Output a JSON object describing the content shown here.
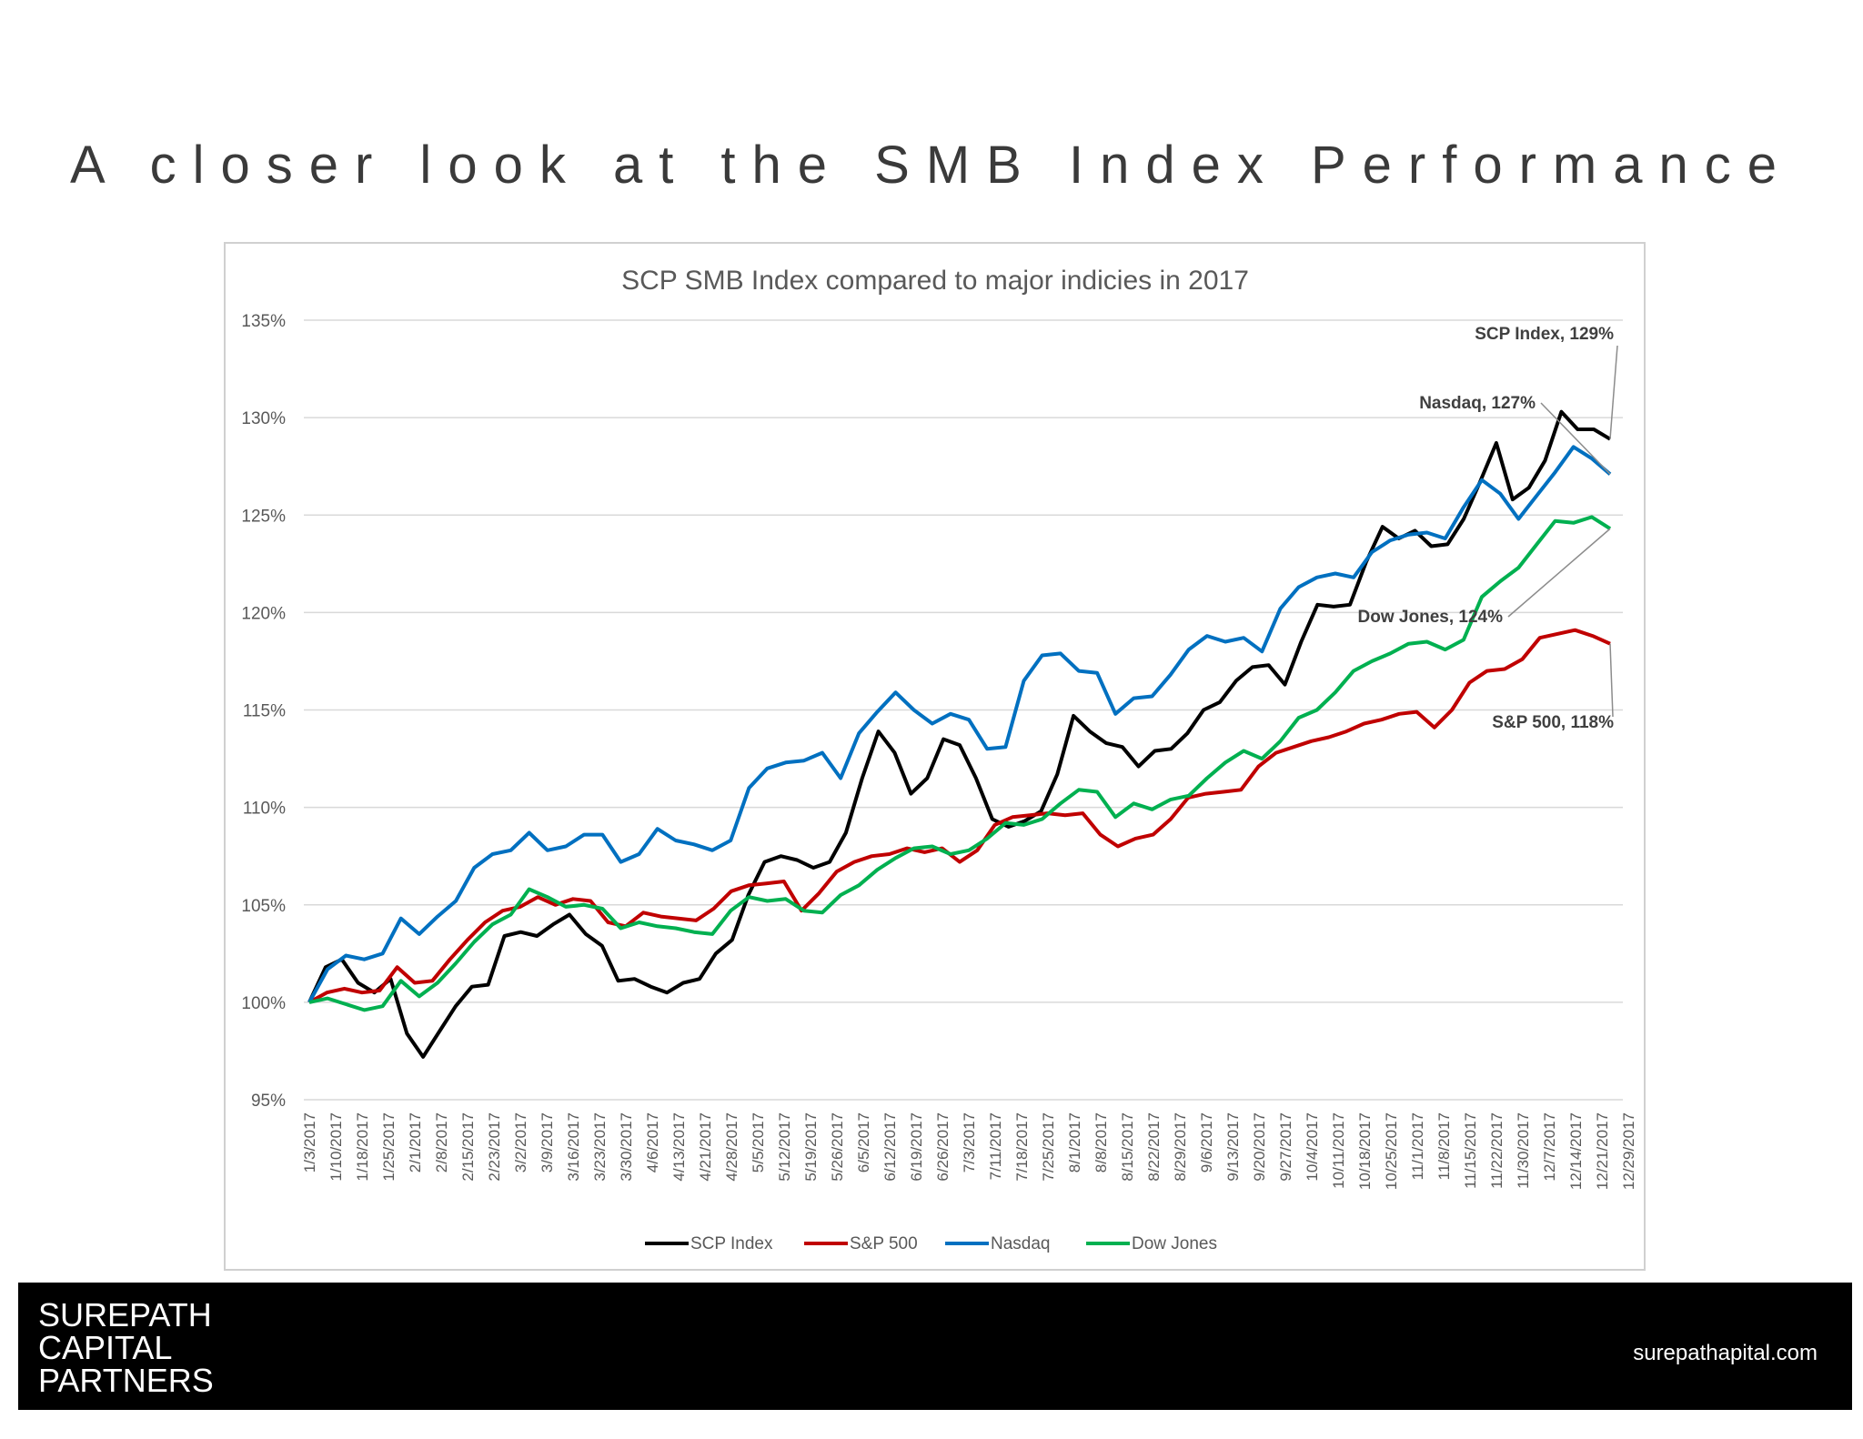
{
  "slide": {
    "title": "A closer look at the SMB Index Performance"
  },
  "footer": {
    "brand_lines": [
      "SUREPATH",
      "CAPITAL",
      "PARTNERS"
    ],
    "website": "surepathapital.com"
  },
  "chart_data": {
    "type": "line",
    "title": "SCP SMB Index compared to major indicies in 2017",
    "xlabel": "",
    "ylabel": "",
    "ylim": [
      95,
      135
    ],
    "y_ticks": [
      "95%",
      "100%",
      "105%",
      "110%",
      "115%",
      "120%",
      "125%",
      "130%",
      "135%"
    ],
    "grid": "horizontal",
    "legend_position": "bottom",
    "x_tick_labels": [
      "1/3/2017",
      "1/10/2017",
      "1/18/2017",
      "1/25/2017",
      "2/1/2017",
      "2/8/2017",
      "2/15/2017",
      "2/23/2017",
      "3/2/2017",
      "3/9/2017",
      "3/16/2017",
      "3/23/2017",
      "3/30/2017",
      "4/6/2017",
      "4/13/2017",
      "4/21/2017",
      "4/28/2017",
      "5/5/2017",
      "5/12/2017",
      "5/19/2017",
      "5/26/2017",
      "6/5/2017",
      "6/12/2017",
      "6/19/2017",
      "6/26/2017",
      "7/3/2017",
      "7/11/2017",
      "7/18/2017",
      "7/25/2017",
      "8/1/2017",
      "8/8/2017",
      "8/15/2017",
      "8/22/2017",
      "8/29/2017",
      "9/6/2017",
      "9/13/2017",
      "9/20/2017",
      "9/27/2017",
      "10/4/2017",
      "10/11/2017",
      "10/18/2017",
      "10/25/2017",
      "11/1/2017",
      "11/8/2017",
      "11/15/2017",
      "11/22/2017",
      "11/30/2017",
      "12/7/2017",
      "12/14/2017",
      "12/21/2017",
      "12/29/2017"
    ],
    "series": [
      {
        "name": "SCP Index",
        "color": "#000000",
        "end_label": "SCP Index, 129%",
        "values": [
          100.0,
          101.8,
          102.2,
          101.0,
          100.5,
          101.2,
          98.4,
          97.2,
          98.5,
          99.8,
          100.8,
          100.9,
          103.4,
          103.6,
          103.4,
          104.0,
          104.5,
          103.5,
          102.9,
          101.1,
          101.2,
          100.8,
          100.5,
          101.0,
          101.2,
          102.5,
          103.2,
          105.5,
          107.2,
          107.5,
          107.3,
          106.9,
          107.2,
          108.7,
          111.5,
          113.9,
          112.8,
          110.7,
          111.5,
          113.5,
          113.2,
          111.5,
          109.4,
          109.0,
          109.3,
          109.8,
          111.7,
          114.7,
          113.9,
          113.3,
          113.1,
          112.1,
          112.9,
          113.0,
          113.8,
          115.0,
          115.4,
          116.5,
          117.2,
          117.3,
          116.3,
          118.5,
          120.4,
          120.3,
          120.4,
          122.6,
          124.4,
          123.8,
          124.2,
          123.4,
          123.5,
          124.8,
          126.7,
          128.7,
          125.8,
          126.4,
          127.8,
          130.3,
          129.4,
          129.4,
          128.9
        ]
      },
      {
        "name": "S&P 500",
        "color": "#c00000",
        "end_label": "S&P 500, 118%",
        "values": [
          100.0,
          100.5,
          100.7,
          100.5,
          100.6,
          101.8,
          101.0,
          101.1,
          102.2,
          103.2,
          104.1,
          104.7,
          104.9,
          105.4,
          105.0,
          105.3,
          105.2,
          104.1,
          103.9,
          104.6,
          104.4,
          104.3,
          104.2,
          104.8,
          105.7,
          106.0,
          106.1,
          106.2,
          104.7,
          105.6,
          106.7,
          107.2,
          107.5,
          107.6,
          107.9,
          107.7,
          107.9,
          107.2,
          107.8,
          109.1,
          109.5,
          109.6,
          109.7,
          109.6,
          109.7,
          108.6,
          108.0,
          108.4,
          108.6,
          109.4,
          110.5,
          110.7,
          110.8,
          110.9,
          112.1,
          112.8,
          113.1,
          113.4,
          113.6,
          113.9,
          114.3,
          114.5,
          114.8,
          114.9,
          114.1,
          115.0,
          116.4,
          117.0,
          117.1,
          117.6,
          118.7,
          118.9,
          119.1,
          118.8,
          118.4
        ]
      },
      {
        "name": "Nasdaq",
        "color": "#0070c0",
        "end_label": "Nasdaq, 127%",
        "values": [
          100.0,
          101.7,
          102.4,
          102.2,
          102.5,
          104.3,
          103.5,
          104.4,
          105.2,
          106.9,
          107.6,
          107.8,
          108.7,
          107.8,
          108.0,
          108.6,
          108.6,
          107.2,
          107.6,
          108.9,
          108.3,
          108.1,
          107.8,
          108.3,
          111.0,
          112.0,
          112.3,
          112.4,
          112.8,
          111.5,
          113.8,
          114.9,
          115.9,
          115.0,
          114.3,
          114.8,
          114.5,
          113.0,
          113.1,
          116.5,
          117.8,
          117.9,
          117.0,
          116.9,
          114.8,
          115.6,
          115.7,
          116.8,
          118.1,
          118.8,
          118.5,
          118.7,
          118.0,
          120.2,
          121.3,
          121.8,
          122.0,
          121.8,
          123.1,
          123.7,
          124.0,
          124.1,
          123.8,
          125.4,
          126.8,
          126.1,
          124.8,
          126.0,
          127.2,
          128.5,
          127.9,
          127.1
        ]
      },
      {
        "name": "Dow Jones",
        "color": "#00b050",
        "end_label": "Dow Jones, 124%",
        "values": [
          100.0,
          100.2,
          99.9,
          99.6,
          99.8,
          101.1,
          100.3,
          101.0,
          102.0,
          103.1,
          104.0,
          104.5,
          105.8,
          105.4,
          104.9,
          105.0,
          104.8,
          103.8,
          104.1,
          103.9,
          103.8,
          103.6,
          103.5,
          104.7,
          105.4,
          105.2,
          105.3,
          104.7,
          104.6,
          105.5,
          106.0,
          106.8,
          107.4,
          107.9,
          108.0,
          107.6,
          107.8,
          108.4,
          109.2,
          109.1,
          109.4,
          110.2,
          110.9,
          110.8,
          109.5,
          110.2,
          109.9,
          110.4,
          110.6,
          111.5,
          112.3,
          112.9,
          112.5,
          113.4,
          114.6,
          115.0,
          115.9,
          117.0,
          117.5,
          117.9,
          118.4,
          118.5,
          118.1,
          118.6,
          120.8,
          121.6,
          122.3,
          123.5,
          124.7,
          124.6,
          124.9,
          124.3
        ]
      }
    ]
  }
}
